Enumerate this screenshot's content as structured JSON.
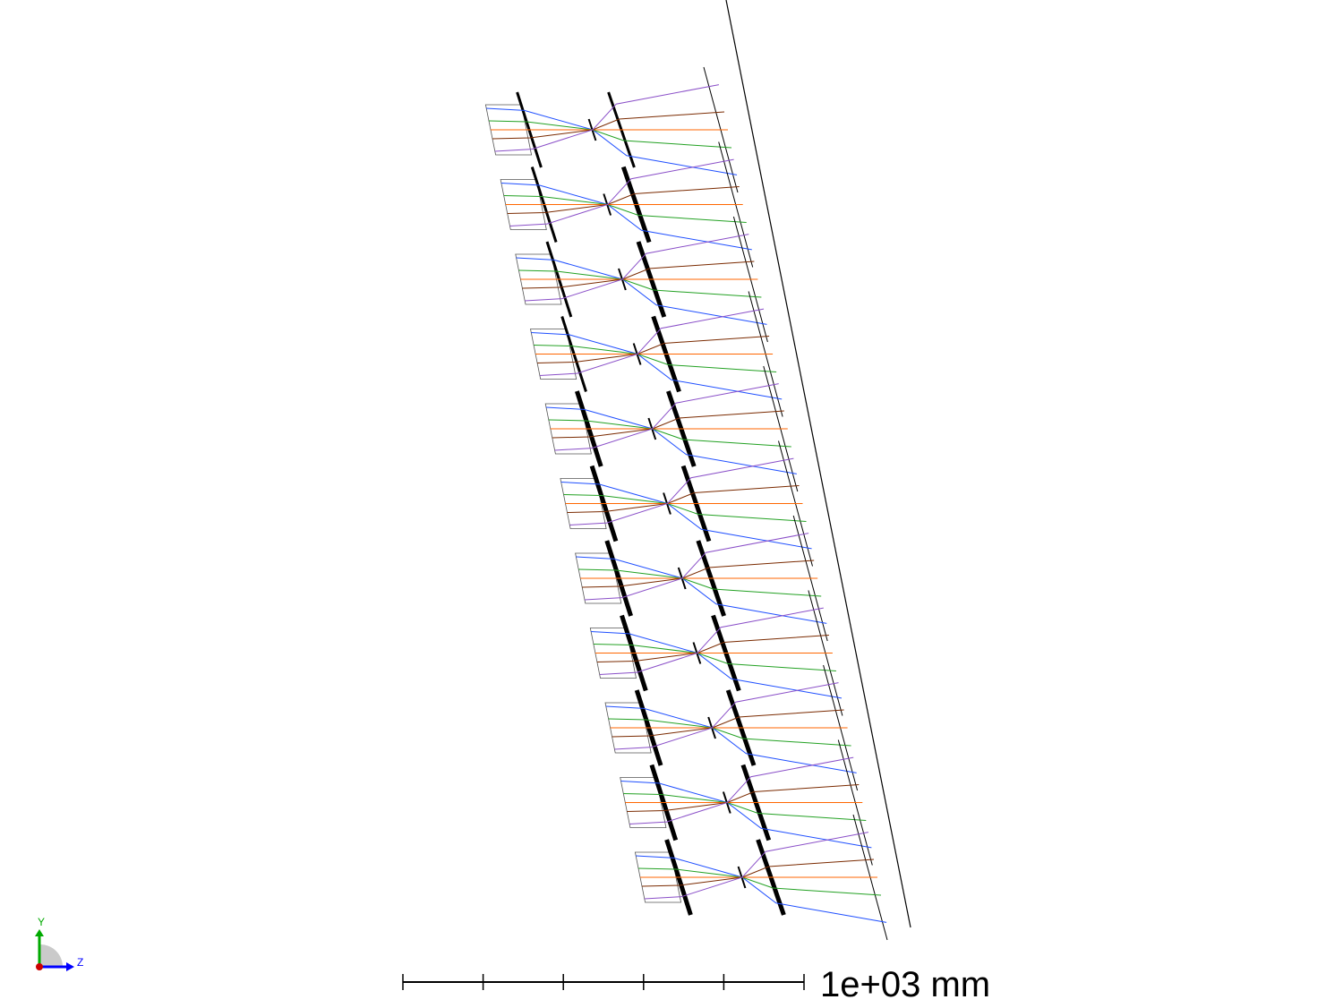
{
  "view": {
    "scale_bar": {
      "label": "1e+03 mm",
      "divisions": 5
    },
    "axis_triad": {
      "y_label": "Y",
      "z_label": "Z"
    }
  },
  "colors": {
    "frame": "#000000",
    "rays": [
      "#1f4fff",
      "#23a123",
      "#ff6600",
      "#7a2a00",
      "#8a4fc8",
      "#00aacc",
      "#b5b500"
    ],
    "triad_y": "#00aa00",
    "triad_z": "#0000ff",
    "triad_x": "#cc0000"
  },
  "diagram": {
    "type": "optical-layout-2d",
    "channel_count": 11
  }
}
